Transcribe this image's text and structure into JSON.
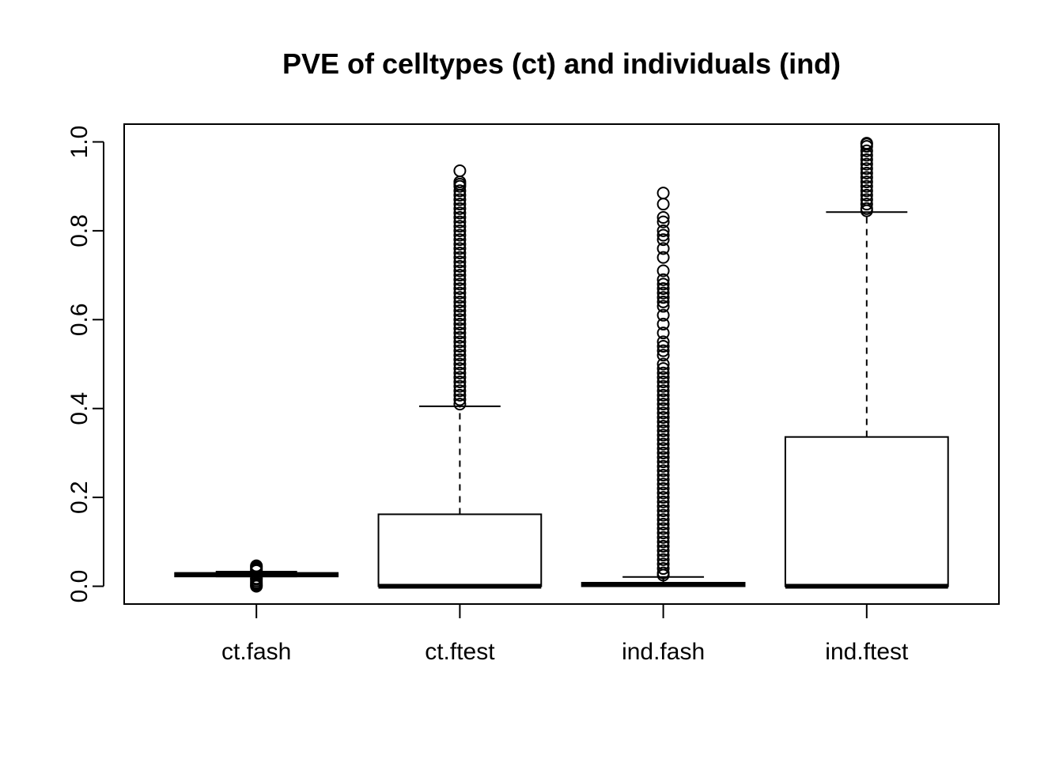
{
  "chart_data": {
    "type": "boxplot",
    "title": "PVE of celltypes (ct) and individuals (ind)",
    "xlabel": "",
    "ylabel": "",
    "ylim": [
      -0.04,
      1.04
    ],
    "yticks": [
      0.0,
      0.2,
      0.4,
      0.6,
      0.8,
      1.0
    ],
    "ytick_labels": [
      "0.0",
      "0.2",
      "0.4",
      "0.6",
      "0.8",
      "1.0"
    ],
    "grid": false,
    "categories": [
      "ct.fash",
      "ct.ftest",
      "ind.fash",
      "ind.ftest"
    ],
    "boxes": [
      {
        "name": "ct.fash",
        "whisker_low": 0.022,
        "q1": 0.022,
        "median": 0.026,
        "q3": 0.03,
        "whisker_high": 0.033,
        "outliers": [
          0.0,
          0.002,
          0.005,
          0.008,
          0.012,
          0.016,
          0.018,
          0.035,
          0.038,
          0.041,
          0.044,
          0.046
        ]
      },
      {
        "name": "ct.ftest",
        "whisker_low": 0.0,
        "q1": 0.0,
        "median": 0.0,
        "q3": 0.162,
        "whisker_high": 0.405,
        "outliers": [
          0.41,
          0.42,
          0.43,
          0.44,
          0.45,
          0.46,
          0.47,
          0.48,
          0.49,
          0.5,
          0.51,
          0.52,
          0.53,
          0.54,
          0.55,
          0.56,
          0.57,
          0.58,
          0.59,
          0.6,
          0.61,
          0.62,
          0.63,
          0.64,
          0.65,
          0.66,
          0.67,
          0.68,
          0.69,
          0.7,
          0.71,
          0.72,
          0.73,
          0.74,
          0.75,
          0.76,
          0.77,
          0.78,
          0.79,
          0.8,
          0.81,
          0.82,
          0.83,
          0.84,
          0.85,
          0.86,
          0.87,
          0.88,
          0.89,
          0.9,
          0.905,
          0.91,
          0.935
        ]
      },
      {
        "name": "ind.fash",
        "whisker_low": 0.0,
        "q1": 0.0,
        "median": 0.004,
        "q3": 0.008,
        "whisker_high": 0.021,
        "outliers": [
          0.025,
          0.03,
          0.04,
          0.05,
          0.06,
          0.07,
          0.08,
          0.09,
          0.1,
          0.11,
          0.12,
          0.13,
          0.14,
          0.15,
          0.16,
          0.17,
          0.18,
          0.19,
          0.2,
          0.21,
          0.22,
          0.23,
          0.24,
          0.25,
          0.26,
          0.27,
          0.28,
          0.29,
          0.3,
          0.31,
          0.32,
          0.33,
          0.34,
          0.35,
          0.36,
          0.37,
          0.38,
          0.39,
          0.4,
          0.41,
          0.42,
          0.43,
          0.44,
          0.45,
          0.46,
          0.47,
          0.48,
          0.49,
          0.5,
          0.52,
          0.53,
          0.54,
          0.55,
          0.57,
          0.59,
          0.61,
          0.63,
          0.64,
          0.65,
          0.66,
          0.67,
          0.68,
          0.69,
          0.71,
          0.74,
          0.76,
          0.78,
          0.79,
          0.8,
          0.82,
          0.83,
          0.86,
          0.885
        ]
      },
      {
        "name": "ind.ftest",
        "whisker_low": 0.0,
        "q1": 0.0,
        "median": 0.0,
        "q3": 0.336,
        "whisker_high": 0.842,
        "outliers": [
          0.845,
          0.85,
          0.86,
          0.87,
          0.88,
          0.89,
          0.9,
          0.91,
          0.92,
          0.93,
          0.94,
          0.95,
          0.96,
          0.97,
          0.98,
          0.99,
          0.995,
          0.997
        ]
      }
    ]
  }
}
